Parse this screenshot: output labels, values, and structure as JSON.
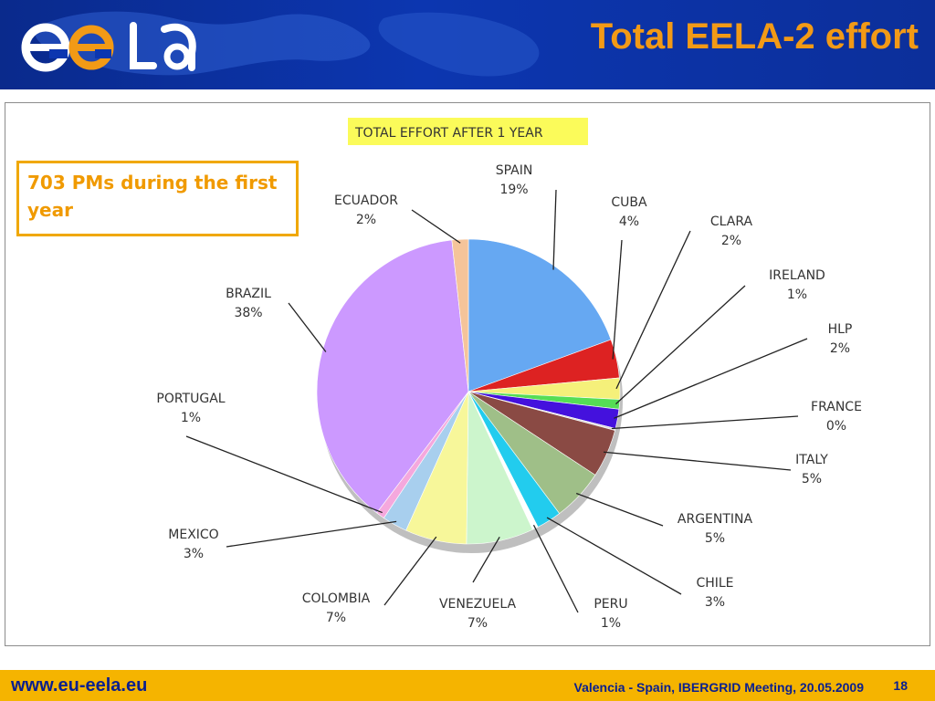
{
  "slide": {
    "title": "Total EELA-2 effort",
    "note": "703 PMs during the first year"
  },
  "footer": {
    "url": "www.eu-eela.eu",
    "event": "Valencia - Spain, IBERGRID Meeting, 20.05.2009",
    "page": "18"
  },
  "colors": {
    "header_bg": "#0c36b0",
    "title": "#f29a16",
    "footer_bg": "#f5b400",
    "footer_text": "#0a1f8f",
    "note_border": "#f0a800"
  },
  "chart_data": {
    "type": "pie",
    "title": "TOTAL EFFORT AFTER 1 YEAR",
    "series": [
      {
        "name": "SPAIN",
        "label_pct": "19%",
        "value": 19.0,
        "color": "#66a8f2"
      },
      {
        "name": "CUBA",
        "label_pct": "4%",
        "value": 4.0,
        "color": "#dd2222"
      },
      {
        "name": "CLARA",
        "label_pct": "2%",
        "value": 2.2,
        "color": "#f5f07a"
      },
      {
        "name": "IRELAND",
        "label_pct": "1%",
        "value": 1.0,
        "color": "#55dd55"
      },
      {
        "name": "HLP",
        "label_pct": "2%",
        "value": 2.0,
        "color": "#4411dd"
      },
      {
        "name": "FRANCE",
        "label_pct": "0%",
        "value": 0.2,
        "color": "#dddddd"
      },
      {
        "name": "ITALY",
        "label_pct": "5%",
        "value": 5.0,
        "color": "#8a4a44"
      },
      {
        "name": "ARGENTINA",
        "label_pct": "5%",
        "value": 5.4,
        "color": "#9fbf88"
      },
      {
        "name": "CHILE",
        "label_pct": "3%",
        "value": 2.6,
        "color": "#22ccee"
      },
      {
        "name": "PERU",
        "label_pct": "1%",
        "value": 0.6,
        "color": "#ffffff"
      },
      {
        "name": "VENEZUELA",
        "label_pct": "7%",
        "value": 7.0,
        "color": "#ccf5cc"
      },
      {
        "name": "COLOMBIA",
        "label_pct": "7%",
        "value": 6.4,
        "color": "#f7f79a"
      },
      {
        "name": "MEXICO",
        "label_pct": "3%",
        "value": 2.6,
        "color": "#a8cfee"
      },
      {
        "name": "PORTUGAL",
        "label_pct": "1%",
        "value": 0.9,
        "color": "#f5a8dd"
      },
      {
        "name": "BRAZIL",
        "label_pct": "38%",
        "value": 37.0,
        "color": "#cc99ff"
      },
      {
        "name": "ECUADOR",
        "label_pct": "2%",
        "value": 1.7,
        "color": "#f5c49a"
      }
    ]
  }
}
